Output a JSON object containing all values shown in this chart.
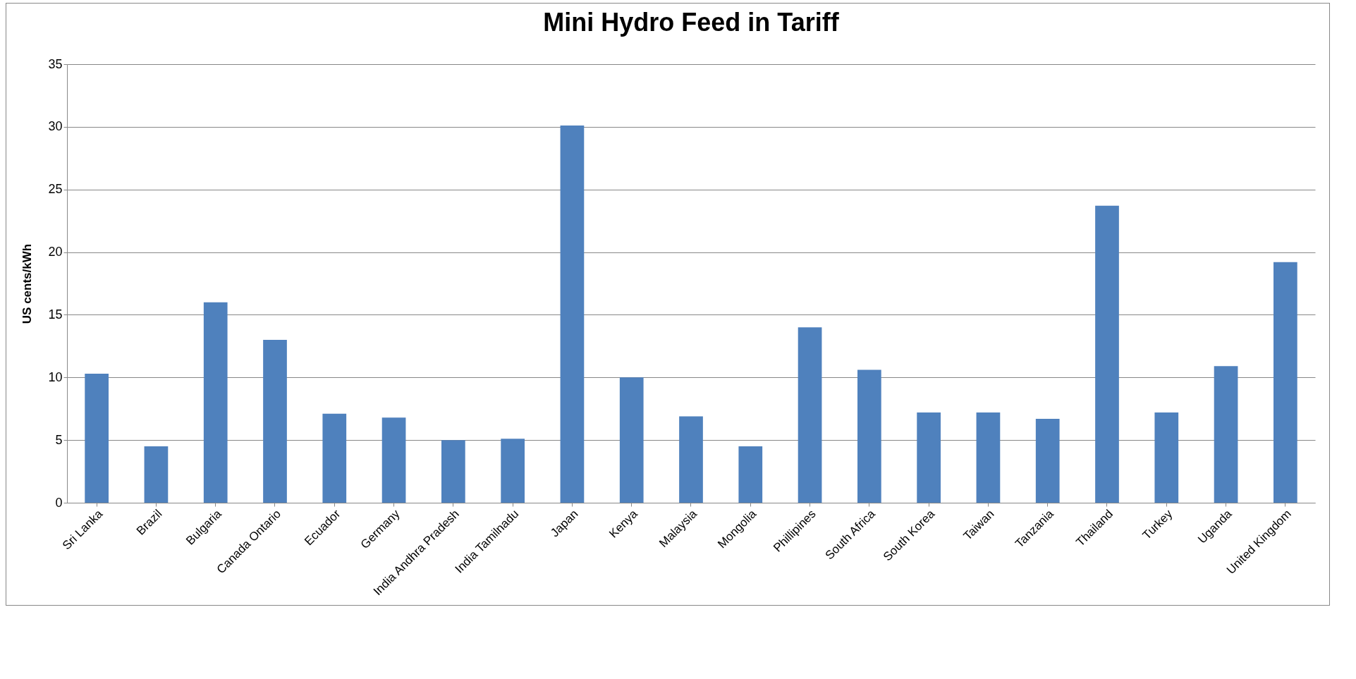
{
  "chart_data": {
    "type": "bar",
    "title": "Mini Hydro Feed in Tariff",
    "ylabel": "US cents/kWh",
    "categories": [
      "Sri Lanka",
      "Brazil",
      "Bulgaria",
      "Canada Ontario",
      "Ecuador",
      "Germany",
      "India Andhra Pradesh",
      "India Tamilnadu",
      "Japan",
      "Kenya",
      "Malaysia",
      "Mongolia",
      "Phillipines",
      "South Africa",
      "South Korea",
      "Taiwan",
      "Tanzania",
      "Thailand",
      "Turkey",
      "Uganda",
      "United Kingdom"
    ],
    "values": [
      10.3,
      4.5,
      16.0,
      13.0,
      7.1,
      6.8,
      5.0,
      5.1,
      30.1,
      10.0,
      6.9,
      4.5,
      14.0,
      10.6,
      7.2,
      7.2,
      6.7,
      23.7,
      7.2,
      10.9,
      19.2
    ],
    "color": "#4f81bd",
    "ylim": [
      0,
      35
    ],
    "yticks": [
      0,
      5,
      10,
      15,
      20,
      25,
      30,
      35
    ],
    "grid": "y"
  }
}
